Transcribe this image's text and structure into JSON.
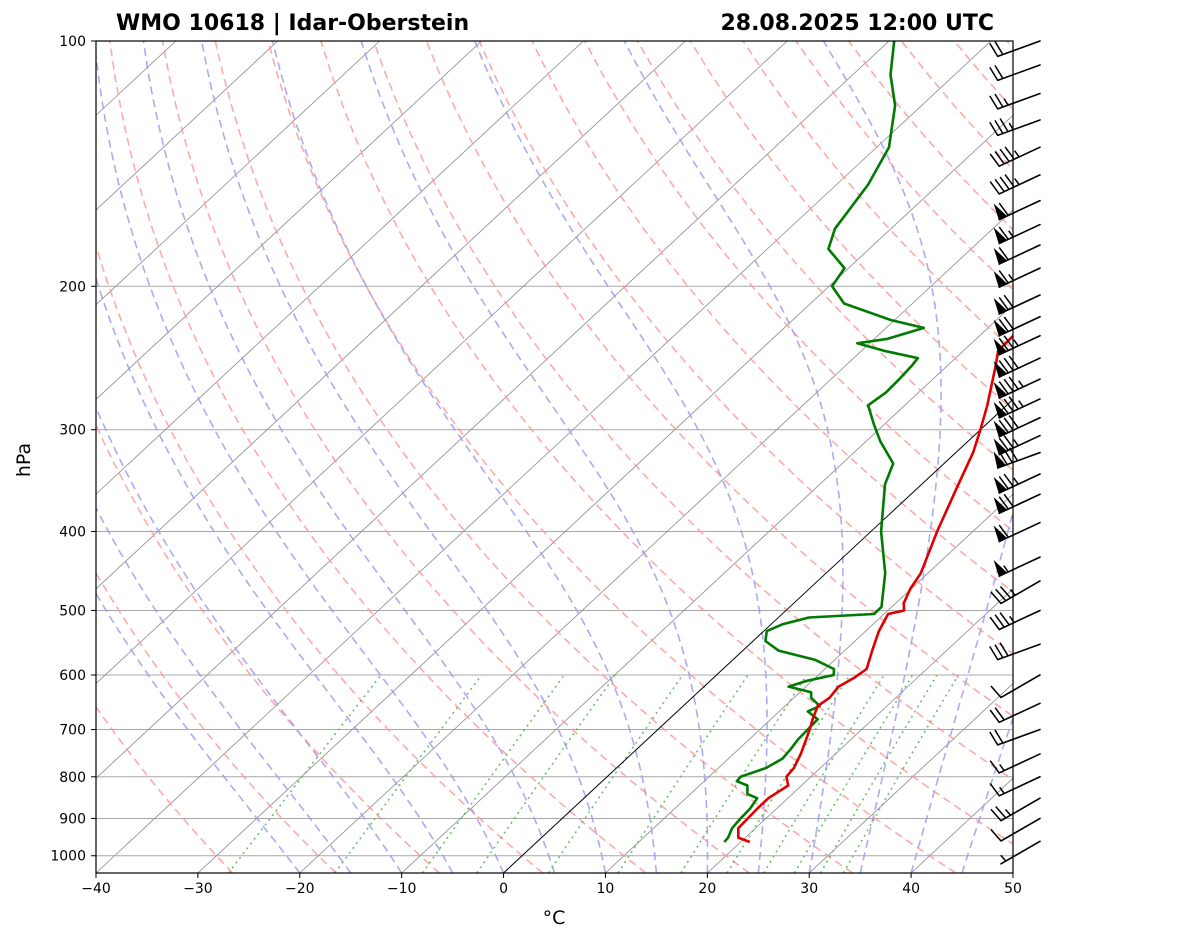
{
  "header": {
    "station": "WMO 10618 | Idar-Oberstein",
    "datetime": "28.08.2025 12:00 UTC"
  },
  "chart_data": {
    "type": "skew-t",
    "title_left": "WMO 10618 | Idar-Oberstein",
    "title_right": "28.08.2025 12:00 UTC",
    "xlabel": "°C",
    "ylabel": "hPa",
    "xlim": [
      -40,
      50
    ],
    "ylim": [
      1050,
      100
    ],
    "y_scale": "log",
    "x_ticks": [
      -40,
      -30,
      -20,
      -10,
      0,
      10,
      20,
      30,
      40,
      50
    ],
    "x_tick_labels": [
      "−40",
      "−30",
      "−20",
      "−10",
      "0",
      "10",
      "20",
      "30",
      "40",
      "50"
    ],
    "y_ticks": [
      100,
      200,
      300,
      400,
      500,
      600,
      700,
      800,
      900,
      1000
    ],
    "y_tick_labels": [
      "100",
      "200",
      "300",
      "400",
      "500",
      "600",
      "700",
      "800",
      "900",
      "1000"
    ],
    "grid": true,
    "colors": {
      "temperature": "#e00000",
      "dewpoint": "#007a00",
      "dry_adiabats": "#ff9a9a",
      "moist_adiabats": "#9c9cf2",
      "mixing_ratio": "#5cb85c",
      "isotherms": "#8a8a8a",
      "isobars": "#a8a8a8",
      "zero_isotherm": "#000000"
    },
    "series": [
      {
        "name": "Temperature",
        "unit": "°C",
        "points": [
          [
            962,
            20.9
          ],
          [
            950,
            19.3
          ],
          [
            925,
            18.3
          ],
          [
            900,
            18.2
          ],
          [
            875,
            18.1
          ],
          [
            850,
            18.1
          ],
          [
            820,
            18.7
          ],
          [
            800,
            17.6
          ],
          [
            780,
            17.4
          ],
          [
            750,
            16.6
          ],
          [
            700,
            14.9
          ],
          [
            680,
            14.1
          ],
          [
            655,
            13.2
          ],
          [
            640,
            13.5
          ],
          [
            620,
            13.2
          ],
          [
            605,
            13.8
          ],
          [
            590,
            14.1
          ],
          [
            560,
            12.7
          ],
          [
            530,
            11.3
          ],
          [
            505,
            10.4
          ],
          [
            500,
            11.6
          ],
          [
            490,
            10.8
          ],
          [
            470,
            9.9
          ],
          [
            450,
            9.3
          ],
          [
            400,
            6.5
          ],
          [
            350,
            3.6
          ],
          [
            320,
            1.7
          ],
          [
            300,
            0.0
          ],
          [
            280,
            -1.9
          ],
          [
            250,
            -5.3
          ],
          [
            240,
            -6.6
          ],
          [
            230,
            -6.7
          ],
          [
            220,
            -7.3
          ],
          [
            210,
            -6.4
          ],
          [
            200,
            -4.6
          ],
          [
            190,
            -4.2
          ],
          [
            180,
            -4.5
          ],
          [
            170,
            -4.2
          ],
          [
            160,
            -4.0
          ],
          [
            150,
            -4.3
          ],
          [
            140,
            -4.5
          ],
          [
            130,
            -5.2
          ],
          [
            120,
            -5.9
          ],
          [
            110,
            -6.6
          ],
          [
            100,
            -7.3
          ]
        ]
      },
      {
        "name": "Dewpoint",
        "unit": "°C",
        "points": [
          [
            962,
            18.4
          ],
          [
            950,
            18.3
          ],
          [
            925,
            17.7
          ],
          [
            900,
            17.5
          ],
          [
            875,
            17.4
          ],
          [
            850,
            17.0
          ],
          [
            840,
            15.6
          ],
          [
            820,
            14.7
          ],
          [
            810,
            13.2
          ],
          [
            800,
            13.1
          ],
          [
            780,
            14.7
          ],
          [
            760,
            15.3
          ],
          [
            740,
            15.1
          ],
          [
            720,
            14.8
          ],
          [
            700,
            14.7
          ],
          [
            680,
            14.6
          ],
          [
            665,
            12.8
          ],
          [
            655,
            13.4
          ],
          [
            640,
            11.7
          ],
          [
            630,
            11.1
          ],
          [
            620,
            8.3
          ],
          [
            610,
            9.5
          ],
          [
            600,
            11.5
          ],
          [
            590,
            10.9
          ],
          [
            575,
            8.1
          ],
          [
            560,
            3.5
          ],
          [
            545,
            1.2
          ],
          [
            530,
            0.3
          ],
          [
            520,
            1.1
          ],
          [
            510,
            3.0
          ],
          [
            505,
            9.0
          ],
          [
            495,
            9.0
          ],
          [
            450,
            5.8
          ],
          [
            400,
            1.0
          ],
          [
            350,
            -3.6
          ],
          [
            330,
            -5.0
          ],
          [
            310,
            -8.6
          ],
          [
            295,
            -11.1
          ],
          [
            280,
            -13.6
          ],
          [
            270,
            -13.2
          ],
          [
            260,
            -13.3
          ],
          [
            250,
            -13.5
          ],
          [
            245,
            -13.7
          ],
          [
            240,
            -17.8
          ],
          [
            235,
            -21.2
          ],
          [
            232,
            -18.7
          ],
          [
            225,
            -16.3
          ],
          [
            220,
            -20.4
          ],
          [
            210,
            -26.7
          ],
          [
            200,
            -29.7
          ],
          [
            190,
            -30.4
          ],
          [
            180,
            -34.0
          ],
          [
            170,
            -35.5
          ],
          [
            150,
            -36.9
          ],
          [
            135,
            -38.8
          ],
          [
            120,
            -42.6
          ],
          [
            110,
            -46.3
          ],
          [
            100,
            -49.5
          ]
        ]
      }
    ],
    "wind_barbs": {
      "unit": "kt",
      "levels": [
        {
          "p": 960,
          "dir": 240,
          "spd": 5
        },
        {
          "p": 900,
          "dir": 240,
          "spd": 10
        },
        {
          "p": 850,
          "dir": 240,
          "spd": 25
        },
        {
          "p": 800,
          "dir": 245,
          "spd": 15
        },
        {
          "p": 750,
          "dir": 245,
          "spd": 15
        },
        {
          "p": 700,
          "dir": 250,
          "spd": 20
        },
        {
          "p": 650,
          "dir": 245,
          "spd": 20
        },
        {
          "p": 600,
          "dir": 240,
          "spd": 10
        },
        {
          "p": 550,
          "dir": 250,
          "spd": 30
        },
        {
          "p": 500,
          "dir": 245,
          "spd": 35
        },
        {
          "p": 460,
          "dir": 240,
          "spd": 35
        },
        {
          "p": 430,
          "dir": 245,
          "spd": 55
        },
        {
          "p": 390,
          "dir": 245,
          "spd": 60
        },
        {
          "p": 360,
          "dir": 245,
          "spd": 70
        },
        {
          "p": 340,
          "dir": 245,
          "spd": 75
        },
        {
          "p": 320,
          "dir": 250,
          "spd": 80
        },
        {
          "p": 305,
          "dir": 245,
          "spd": 75
        },
        {
          "p": 290,
          "dir": 245,
          "spd": 80
        },
        {
          "p": 275,
          "dir": 245,
          "spd": 85
        },
        {
          "p": 260,
          "dir": 245,
          "spd": 85
        },
        {
          "p": 245,
          "dir": 245,
          "spd": 80
        },
        {
          "p": 230,
          "dir": 245,
          "spd": 75
        },
        {
          "p": 218,
          "dir": 245,
          "spd": 70
        },
        {
          "p": 205,
          "dir": 245,
          "spd": 70
        },
        {
          "p": 190,
          "dir": 245,
          "spd": 65
        },
        {
          "p": 178,
          "dir": 245,
          "spd": 60
        },
        {
          "p": 168,
          "dir": 245,
          "spd": 65
        },
        {
          "p": 157,
          "dir": 245,
          "spd": 60
        },
        {
          "p": 146,
          "dir": 245,
          "spd": 45
        },
        {
          "p": 135,
          "dir": 245,
          "spd": 45
        },
        {
          "p": 125,
          "dir": 250,
          "spd": 35
        },
        {
          "p": 116,
          "dir": 250,
          "spd": 25
        },
        {
          "p": 107,
          "dir": 250,
          "spd": 20
        },
        {
          "p": 100,
          "dir": 250,
          "spd": 20
        }
      ]
    }
  }
}
